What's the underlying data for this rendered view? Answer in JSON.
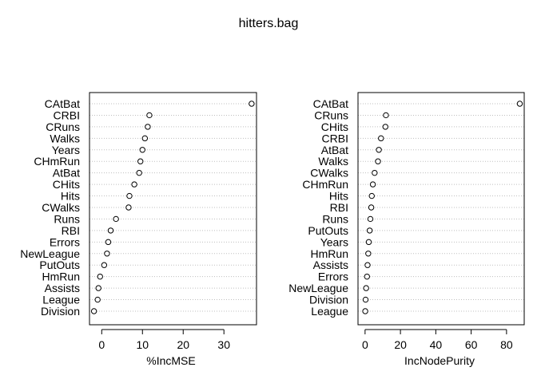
{
  "title": "hitters.bag",
  "chart_data": [
    {
      "type": "scatter",
      "xlabel": "%IncMSE",
      "xlim": [
        -3,
        38
      ],
      "xticks": [
        0,
        10,
        20,
        30
      ],
      "labels": [
        "CAtBat",
        "CRBI",
        "CRuns",
        "Walks",
        "Years",
        "CHmRun",
        "AtBat",
        "CHits",
        "Hits",
        "CWalks",
        "Runs",
        "RBI",
        "Errors",
        "NewLeague",
        "PutOuts",
        "HmRun",
        "Assists",
        "League",
        "Division"
      ],
      "values": [
        36.8,
        11.7,
        11.3,
        10.6,
        10.0,
        9.5,
        9.2,
        8.0,
        6.8,
        6.6,
        3.5,
        2.2,
        1.6,
        1.3,
        0.6,
        -0.4,
        -0.8,
        -1.0,
        -1.9
      ]
    },
    {
      "type": "scatter",
      "xlabel": "IncNodePurity",
      "xlim": [
        -4,
        90
      ],
      "xticks": [
        0,
        20,
        40,
        60,
        80
      ],
      "labels": [
        "CAtBat",
        "CRuns",
        "CHits",
        "CRBI",
        "AtBat",
        "Walks",
        "CWalks",
        "CHmRun",
        "Hits",
        "RBI",
        "Runs",
        "PutOuts",
        "Years",
        "HmRun",
        "Assists",
        "Errors",
        "NewLeague",
        "Division",
        "League"
      ],
      "values": [
        87.5,
        11.8,
        11.5,
        9.0,
        7.8,
        7.3,
        5.4,
        4.4,
        3.8,
        3.5,
        3.0,
        2.6,
        2.1,
        1.8,
        1.4,
        1.1,
        0.6,
        0.3,
        0.1
      ]
    }
  ]
}
